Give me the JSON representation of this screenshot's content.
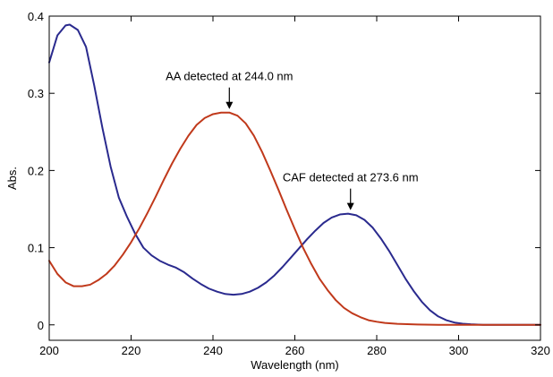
{
  "chart_data": {
    "type": "line",
    "title": "",
    "xlabel": "Wavelength (nm)",
    "ylabel": "Abs.",
    "xlim": [
      200,
      320
    ],
    "ylim": [
      -0.02,
      0.4
    ],
    "x_ticks": [
      200,
      220,
      240,
      260,
      280,
      300,
      320
    ],
    "y_ticks": [
      0,
      0.1,
      0.2,
      0.3,
      0.4
    ],
    "x_tick_labels": [
      "200",
      "220",
      "240",
      "260",
      "280",
      "300",
      "320"
    ],
    "y_tick_labels": [
      "0",
      "0.1",
      "0.2",
      "0.3",
      "0.4"
    ],
    "grid": false,
    "legend": "none",
    "series": [
      {
        "color": "#2a2a8e",
        "points": [
          [
            200,
            0.34
          ],
          [
            202,
            0.375
          ],
          [
            204,
            0.388
          ],
          [
            205,
            0.389
          ],
          [
            207,
            0.382
          ],
          [
            209,
            0.36
          ],
          [
            211,
            0.31
          ],
          [
            213,
            0.255
          ],
          [
            215,
            0.205
          ],
          [
            217,
            0.165
          ],
          [
            219,
            0.14
          ],
          [
            221,
            0.118
          ],
          [
            223,
            0.1
          ],
          [
            225,
            0.09
          ],
          [
            227,
            0.083
          ],
          [
            229,
            0.078
          ],
          [
            231,
            0.074
          ],
          [
            233,
            0.068
          ],
          [
            235,
            0.06
          ],
          [
            237,
            0.053
          ],
          [
            239,
            0.047
          ],
          [
            241,
            0.043
          ],
          [
            243,
            0.04
          ],
          [
            245,
            0.039
          ],
          [
            247,
            0.04
          ],
          [
            249,
            0.043
          ],
          [
            251,
            0.048
          ],
          [
            253,
            0.055
          ],
          [
            255,
            0.064
          ],
          [
            257,
            0.075
          ],
          [
            259,
            0.087
          ],
          [
            261,
            0.099
          ],
          [
            263,
            0.111
          ],
          [
            265,
            0.122
          ],
          [
            267,
            0.132
          ],
          [
            269,
            0.139
          ],
          [
            271,
            0.143
          ],
          [
            273,
            0.144
          ],
          [
            275,
            0.142
          ],
          [
            277,
            0.136
          ],
          [
            279,
            0.126
          ],
          [
            281,
            0.112
          ],
          [
            283,
            0.096
          ],
          [
            285,
            0.078
          ],
          [
            287,
            0.06
          ],
          [
            289,
            0.044
          ],
          [
            291,
            0.03
          ],
          [
            293,
            0.019
          ],
          [
            295,
            0.011
          ],
          [
            297,
            0.006
          ],
          [
            299,
            0.003
          ],
          [
            301,
            0.0015
          ],
          [
            303,
            0.0007
          ],
          [
            306,
            0.0
          ],
          [
            320,
            0.0
          ]
        ]
      },
      {
        "color": "#c0391b",
        "points": [
          [
            200,
            0.083
          ],
          [
            202,
            0.066
          ],
          [
            204,
            0.055
          ],
          [
            206,
            0.05
          ],
          [
            208,
            0.05
          ],
          [
            210,
            0.052
          ],
          [
            212,
            0.058
          ],
          [
            214,
            0.066
          ],
          [
            216,
            0.077
          ],
          [
            218,
            0.091
          ],
          [
            220,
            0.107
          ],
          [
            222,
            0.125
          ],
          [
            224,
            0.145
          ],
          [
            226,
            0.166
          ],
          [
            228,
            0.188
          ],
          [
            230,
            0.209
          ],
          [
            232,
            0.228
          ],
          [
            234,
            0.245
          ],
          [
            236,
            0.259
          ],
          [
            238,
            0.268
          ],
          [
            240,
            0.273
          ],
          [
            242,
            0.275
          ],
          [
            244,
            0.275
          ],
          [
            246,
            0.271
          ],
          [
            248,
            0.261
          ],
          [
            250,
            0.245
          ],
          [
            252,
            0.224
          ],
          [
            254,
            0.2
          ],
          [
            256,
            0.175
          ],
          [
            258,
            0.149
          ],
          [
            260,
            0.124
          ],
          [
            262,
            0.1
          ],
          [
            264,
            0.079
          ],
          [
            266,
            0.06
          ],
          [
            268,
            0.045
          ],
          [
            270,
            0.032
          ],
          [
            272,
            0.022
          ],
          [
            274,
            0.015
          ],
          [
            276,
            0.01
          ],
          [
            278,
            0.006
          ],
          [
            280,
            0.004
          ],
          [
            282,
            0.0025
          ],
          [
            285,
            0.0013
          ],
          [
            290,
            0.0005
          ],
          [
            295,
            0.0
          ],
          [
            320,
            0.0
          ]
        ]
      }
    ],
    "annotations": [
      {
        "text": "AA detected at 244.0 nm",
        "x": 244.0,
        "y": 0.275
      },
      {
        "text": "CAF detected at 273.6 nm",
        "x": 273.6,
        "y": 0.144
      }
    ]
  }
}
